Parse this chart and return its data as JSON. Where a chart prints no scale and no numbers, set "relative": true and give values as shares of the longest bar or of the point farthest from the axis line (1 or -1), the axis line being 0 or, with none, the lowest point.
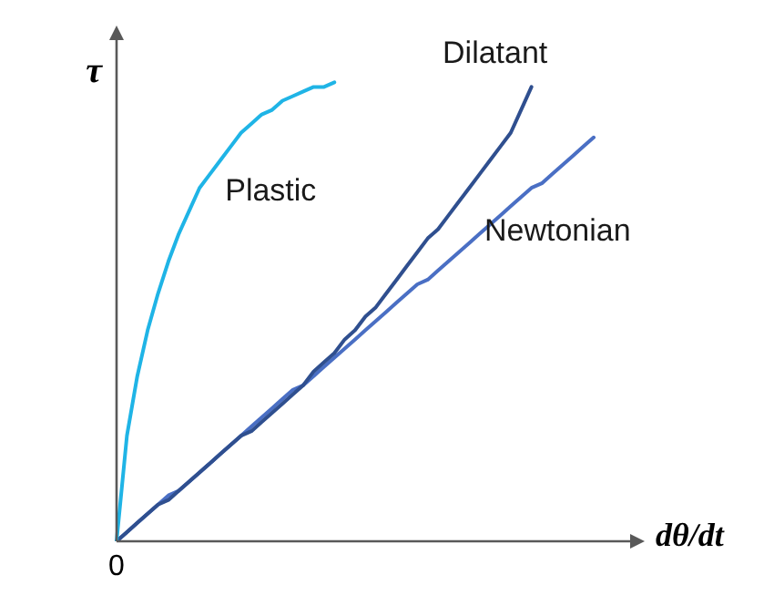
{
  "chart_data": {
    "type": "line",
    "relative": true,
    "xlabel": "dθ/dt",
    "ylabel": "τ",
    "annotations": [
      "0"
    ],
    "legend": false,
    "marker": "none",
    "categories": [
      null,
      null,
      null,
      null,
      null,
      null,
      null,
      null,
      null,
      null,
      null,
      null,
      null,
      null,
      null,
      null,
      null,
      null,
      null,
      null,
      null,
      null,
      null,
      null,
      null,
      null,
      null,
      null,
      null,
      null,
      null,
      null,
      null,
      null,
      null,
      null,
      null,
      null,
      null,
      null,
      null,
      null,
      null,
      null,
      null,
      null,
      null
    ],
    "series": [
      {
        "name": "Plastic",
        "color": "#1fb4e6",
        "values": [
          0,
          0.23,
          0.36,
          0.46,
          0.54,
          0.61,
          0.67,
          0.72,
          0.77,
          0.8,
          0.83,
          0.86,
          0.89,
          0.91,
          0.93,
          0.94,
          0.96,
          0.97,
          0.98,
          0.99,
          0.99,
          1.0,
          null,
          null,
          null,
          null,
          null,
          null,
          null,
          null,
          null,
          null,
          null,
          null,
          null,
          null,
          null,
          null,
          null,
          null,
          null,
          null,
          null,
          null,
          null,
          null,
          null
        ]
      },
      {
        "name": "Dilatant",
        "color": "#2f4f8f",
        "values": [
          0,
          0.02,
          0.04,
          0.06,
          0.08,
          0.09,
          0.11,
          0.13,
          0.15,
          0.17,
          0.19,
          0.21,
          0.23,
          0.24,
          0.26,
          0.28,
          0.3,
          0.32,
          0.34,
          0.37,
          0.39,
          0.41,
          0.44,
          0.46,
          0.49,
          0.51,
          0.54,
          0.57,
          0.6,
          0.63,
          0.66,
          0.68,
          0.71,
          0.74,
          0.77,
          0.8,
          0.83,
          0.86,
          0.89,
          0.94,
          0.99,
          null,
          null,
          null,
          null,
          null,
          null
        ]
      },
      {
        "name": "Newtonian",
        "color": "#4a6fc4",
        "values": [
          0,
          0.02,
          0.04,
          0.06,
          0.08,
          0.1,
          0.11,
          0.13,
          0.15,
          0.17,
          0.19,
          0.21,
          0.23,
          0.25,
          0.27,
          0.29,
          0.31,
          0.33,
          0.34,
          0.36,
          0.38,
          0.4,
          0.42,
          0.44,
          0.46,
          0.48,
          0.5,
          0.52,
          0.54,
          0.56,
          0.57,
          0.59,
          0.61,
          0.63,
          0.65,
          0.67,
          0.69,
          0.71,
          0.73,
          0.75,
          0.77,
          0.78,
          0.8,
          0.82,
          0.84,
          0.86,
          0.88
        ]
      }
    ]
  }
}
